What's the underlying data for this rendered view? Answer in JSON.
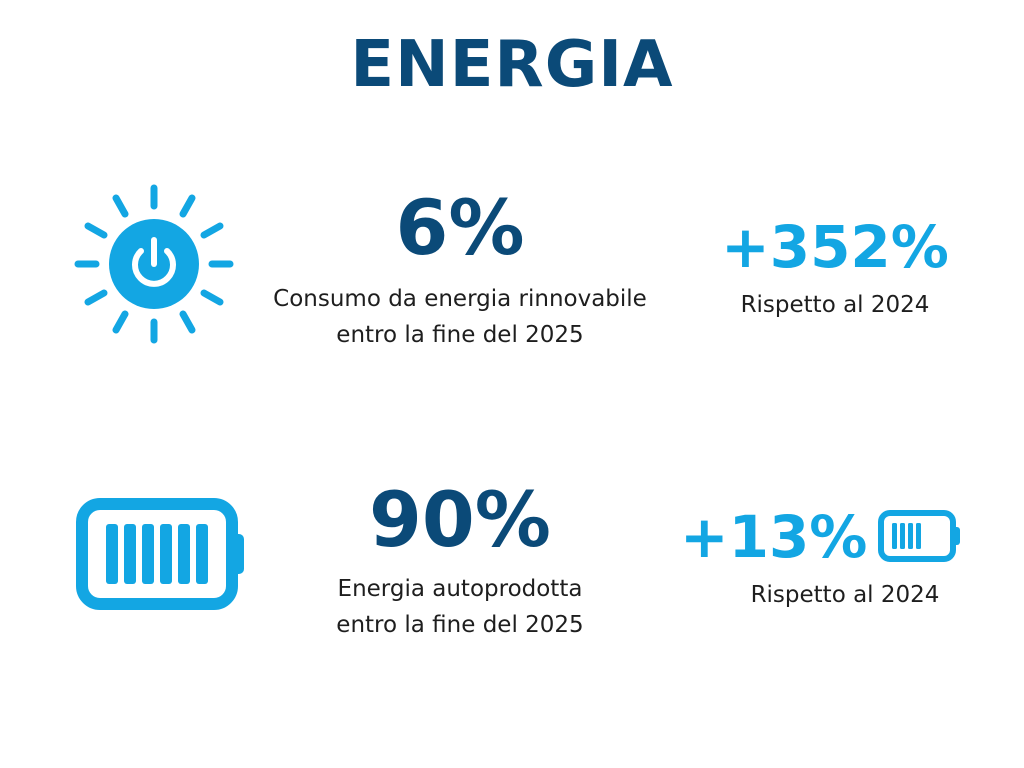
{
  "title": "ENERGIA",
  "colors": {
    "primary": "#0b4a78",
    "accent": "#13a6e3"
  },
  "icons": [
    "sun-power-icon",
    "battery-full-icon",
    "battery-small-icon"
  ],
  "stats": [
    {
      "value": "6%",
      "description_line1": "Consumo da energia rinnovabile",
      "description_line2": "entro la fine del 2025",
      "change": "+352%",
      "change_note": "Rispetto al 2024"
    },
    {
      "value": "90%",
      "description_line1": "Energia autoprodotta",
      "description_line2": "entro la fine del 2025",
      "change": "+13%",
      "change_note": "Rispetto al 2024"
    }
  ]
}
